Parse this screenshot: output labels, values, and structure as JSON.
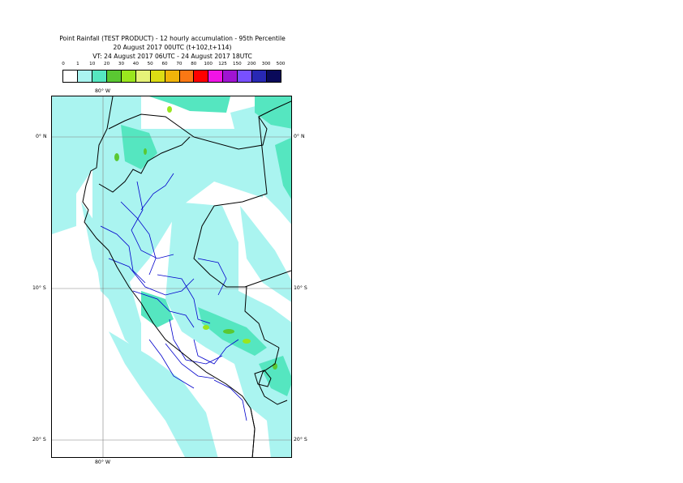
{
  "title": {
    "line1": "Point Rainfall (TEST PRODUCT) - 12 hourly accumulation - 95th Percentile",
    "line2": "20 August 2017 00UTC (t+102,t+114)",
    "line3": "VT: 24 August 2017 06UTC - 24 August 2017 18UTC"
  },
  "legend": {
    "ticks": [
      "0",
      "1",
      "10",
      "20",
      "30",
      "40",
      "50",
      "60",
      "70",
      "80",
      "100",
      "125",
      "150",
      "200",
      "300",
      "500"
    ],
    "colors": [
      "#ffffff",
      "#aaf4f0",
      "#55e6c0",
      "#5ac832",
      "#9ae61e",
      "#e6f278",
      "#dcdc14",
      "#f0b40a",
      "#fa7814",
      "#ff0000",
      "#f014e6",
      "#a014d2",
      "#7850ff",
      "#2828b4",
      "#0a0a5a"
    ]
  },
  "map": {
    "lon_labels": {
      "top": "80° W",
      "bottom": "80° W"
    },
    "lat_labels": [
      {
        "left": "0° N",
        "right": "0° N"
      },
      {
        "left": "10° S",
        "right": "10° S"
      },
      {
        "left": "20° S",
        "right": "20° S"
      }
    ],
    "colors": {
      "light_rain": "#aaf4f0",
      "moderate_rain": "#55e6c0",
      "green_rain": "#5ac832",
      "yellow_green_rain": "#9ae61e",
      "country_border": "#000000",
      "region_border": "#0000cc",
      "graticule": "#808080"
    }
  }
}
